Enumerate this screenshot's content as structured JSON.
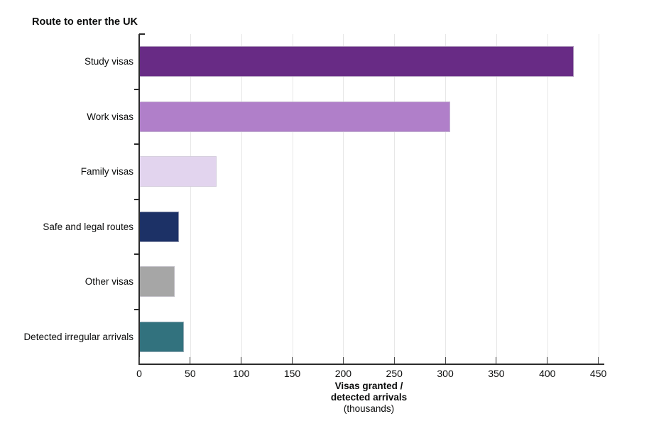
{
  "chart_data": {
    "type": "bar",
    "orientation": "horizontal",
    "title": "Route to enter the UK",
    "categories": [
      "Study visas",
      "Work visas",
      "Family visas",
      "Safe and legal routes",
      "Other visas",
      "Detected irregular arrivals"
    ],
    "values": [
      426,
      305,
      76,
      39,
      35,
      44
    ],
    "unit": "thousands",
    "bar_colors": [
      "#682B85",
      "#B07FC9",
      "#E2D4EE",
      "#1C3166",
      "#A6A6A6",
      "#32727E"
    ],
    "xlabel_lines": [
      "Visas granted /",
      "detected arrivals",
      "(thousands)"
    ],
    "xlim": [
      0,
      450
    ],
    "xticks": [
      0,
      50,
      100,
      150,
      200,
      250,
      300,
      350,
      400,
      450
    ],
    "grid": true,
    "legend": "none",
    "colors": {
      "gridline": "#e7e7e7",
      "axis": "#2b2b2b",
      "text": "#0b0c0c",
      "background": "#ffffff"
    }
  }
}
